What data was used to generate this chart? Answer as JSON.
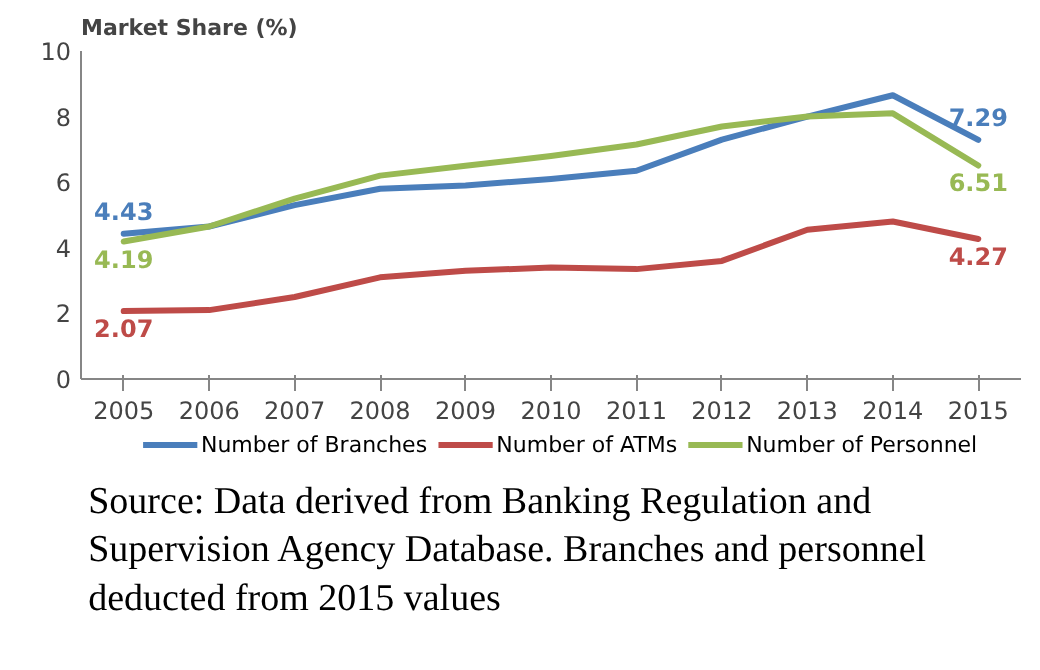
{
  "chart_data": {
    "type": "line",
    "ylabel": "Market Share (%)",
    "categories": [
      "2005",
      "2006",
      "2007",
      "2008",
      "2009",
      "2010",
      "2011",
      "2012",
      "2013",
      "2014",
      "2015"
    ],
    "series": [
      {
        "name": "Number of Branches",
        "color": "#4a7ebb",
        "values": [
          4.43,
          4.65,
          5.3,
          5.8,
          5.9,
          6.1,
          6.35,
          7.3,
          8.0,
          8.65,
          7.29
        ],
        "value_labels": [
          "4.43",
          null,
          null,
          null,
          null,
          null,
          null,
          null,
          null,
          null,
          "7.29"
        ]
      },
      {
        "name": "Number of ATMs",
        "color": "#be4b48",
        "values": [
          2.07,
          2.1,
          2.5,
          3.1,
          3.3,
          3.4,
          3.35,
          3.6,
          4.55,
          4.8,
          4.27
        ],
        "value_labels": [
          "2.07",
          null,
          null,
          null,
          null,
          null,
          null,
          null,
          null,
          null,
          "4.27"
        ]
      },
      {
        "name": "Number of Personnel",
        "color": "#98b954",
        "values": [
          4.19,
          4.65,
          5.5,
          6.2,
          6.5,
          6.8,
          7.15,
          7.7,
          8.0,
          8.1,
          6.51
        ],
        "value_labels": [
          "4.19",
          null,
          null,
          null,
          null,
          null,
          null,
          null,
          null,
          null,
          "6.51"
        ]
      }
    ],
    "ylim": [
      0,
      10
    ],
    "yticks": [
      0,
      2,
      4,
      6,
      8,
      10
    ],
    "grid": false,
    "legend": "bottom",
    "marker": "none",
    "line_style": "solid",
    "annotations": [
      "Source: Data derived from Banking Regulation and Supervision Agency Database. Branches and personnel deducted from 2015 values"
    ]
  }
}
